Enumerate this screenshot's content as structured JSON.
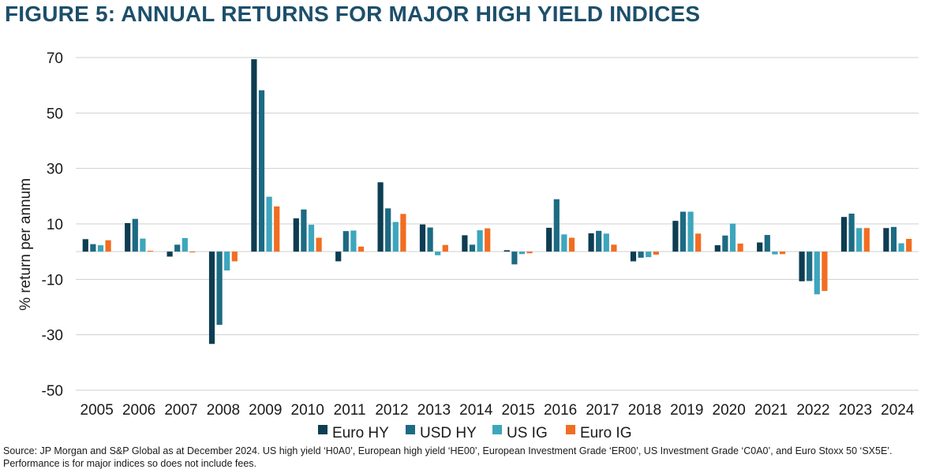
{
  "figure_title": "FIGURE 5: ANNUAL RETURNS FOR MAJOR HIGH YIELD INDICES",
  "source_note": "Source: JP Morgan and S&P Global as at December 2024. US high yield ‘H0A0’, European high yield ‘HE00’, European Investment Grade ‘ER00’, US Investment Grade ‘C0A0’, and Euro Stoxx 50 ‘SX5E’. Performance is for major indices so does not include fees.",
  "chart_data": {
    "type": "bar",
    "title": "FIGURE 5: ANNUAL RETURNS FOR MAJOR HIGH YIELD INDICES",
    "xlabel": "",
    "ylabel": "% return per annum",
    "ylim": [
      -50,
      70
    ],
    "yticks": [
      70,
      50,
      30,
      10,
      -10,
      -30,
      -50
    ],
    "grid": true,
    "legend_position": "bottom",
    "categories": [
      "2005",
      "2006",
      "2007",
      "2008",
      "2009",
      "2010",
      "2011",
      "2012",
      "2013",
      "2014",
      "2015",
      "2016",
      "2017",
      "2018",
      "2019",
      "2020",
      "2021",
      "2022",
      "2023",
      "2024"
    ],
    "series": [
      {
        "name": "Euro HY",
        "color": "#0d3d52",
        "values": [
          4.5,
          10.3,
          -1.8,
          -33.3,
          69.4,
          12.0,
          -3.5,
          25.0,
          9.8,
          5.9,
          0.5,
          8.6,
          6.6,
          -3.5,
          11.1,
          2.3,
          3.3,
          -10.7,
          12.5,
          8.5
        ]
      },
      {
        "name": "USD HY",
        "color": "#1d6a83",
        "values": [
          2.7,
          11.8,
          2.5,
          -26.4,
          58.2,
          15.2,
          7.4,
          15.6,
          8.7,
          2.5,
          -4.6,
          18.9,
          7.5,
          -2.2,
          14.4,
          5.8,
          6.0,
          -10.6,
          13.7,
          8.9
        ]
      },
      {
        "name": "US IG",
        "color": "#3da6bd",
        "values": [
          2.3,
          4.7,
          4.9,
          -6.8,
          19.8,
          9.7,
          7.6,
          10.7,
          -1.3,
          7.7,
          -0.9,
          6.2,
          6.5,
          -2.0,
          14.4,
          10.1,
          -1.0,
          -15.4,
          8.5,
          3.0
        ]
      },
      {
        "name": "Euro IG",
        "color": "#f26d21",
        "values": [
          4.1,
          0.3,
          -0.3,
          -3.5,
          16.3,
          5.0,
          1.8,
          13.6,
          2.4,
          8.4,
          -0.6,
          5.0,
          2.5,
          -1.1,
          6.5,
          2.9,
          -0.9,
          -14.2,
          8.5,
          4.6
        ]
      }
    ]
  }
}
